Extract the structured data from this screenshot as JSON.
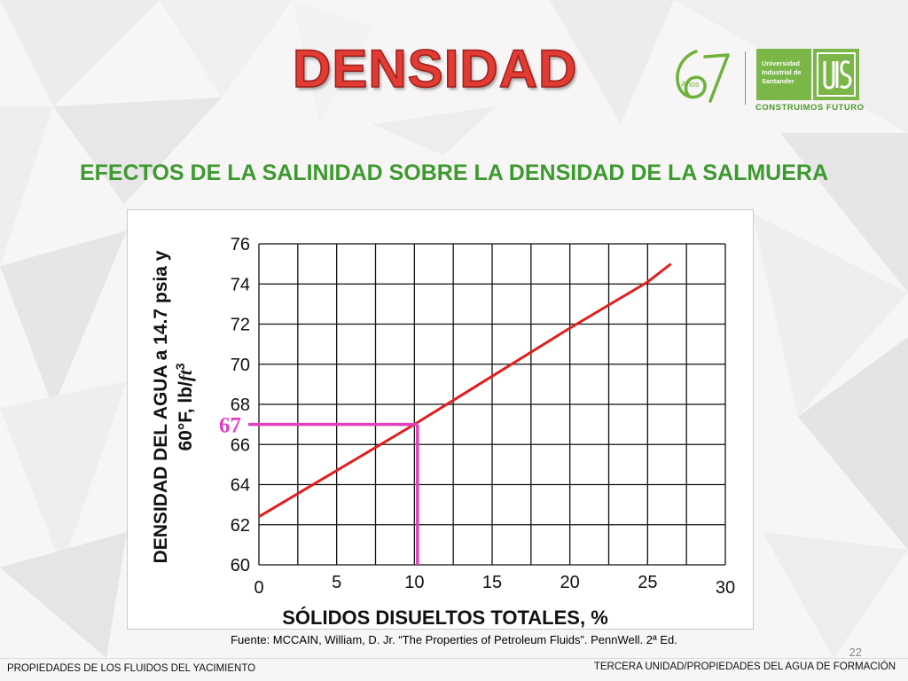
{
  "slide": {
    "title": "DENSIDAD",
    "subtitle": "EFECTOS DE LA SALINIDAD SOBRE LA DENSIDAD DE LA SALMUERA",
    "source": "Fuente: MCCAIN, William, D. Jr. “The Properties of Petroleum Fluids”. PennWell. 2ª Ed.",
    "page_number": "22",
    "footer_left": "PROPIEDADES DE LOS FLUIDOS DEL YACIMIENTO",
    "footer_right": "TERCERA UNIDAD/PROPIEDADES DEL AGUA DE FORMACIÓN"
  },
  "logo": {
    "anniversary_text": "Años",
    "university_lines": [
      "Universidad",
      "Industrial de",
      "Santander"
    ],
    "slogan": "CONSTRUIMOS FUTURO",
    "green": "#7ab648"
  },
  "chart_data": {
    "type": "line",
    "title": "",
    "xlabel": "SÓLIDOS DISUELTOS TOTALES, %",
    "ylabel_line1": "DENSIDAD DEL AGUA a 14.7 psia y",
    "ylabel_line2": "60°F, lb/",
    "ylabel_unit": "ft",
    "ylabel_exp": "3",
    "xlim": [
      0,
      30
    ],
    "ylim": [
      60,
      76
    ],
    "x_ticks": [
      0,
      5,
      10,
      15,
      20,
      25,
      30
    ],
    "y_ticks": [
      60,
      62,
      64,
      66,
      68,
      70,
      72,
      74,
      76
    ],
    "grid": true,
    "series": [
      {
        "color": "#e01f1f",
        "x": [
          0,
          5,
          10,
          15,
          20,
          25,
          26.5
        ],
        "y": [
          62.4,
          64.7,
          67.0,
          69.4,
          71.8,
          74.1,
          75.0
        ]
      }
    ],
    "annotation": {
      "label": "67",
      "x": 10.2,
      "y": 67,
      "color": "#e040c0"
    }
  }
}
